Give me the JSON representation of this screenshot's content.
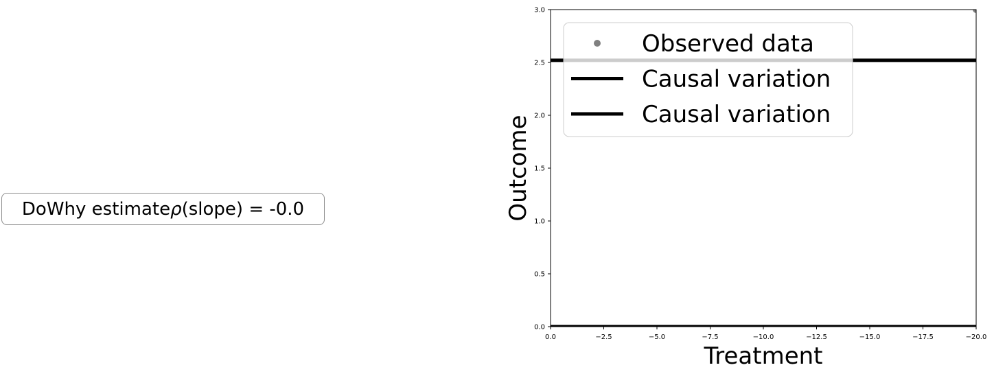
{
  "annotation": {
    "prefix": "DoWhy estimate ",
    "symbol": "ρ",
    "suffix": " (slope) = -0.0"
  },
  "chart_data": {
    "type": "line",
    "xlabel": "Treatment",
    "ylabel": "Outcome",
    "xlim": [
      0.0,
      -20.0
    ],
    "ylim": [
      0.0,
      3.0
    ],
    "xticks": [
      0.0,
      -2.5,
      -5.0,
      -7.5,
      -10.0,
      -12.5,
      -15.0,
      -17.5,
      -20.0
    ],
    "xtick_labels": [
      "0.0",
      "−2.5",
      "−5.0",
      "−7.5",
      "−10.0",
      "−12.5",
      "−15.0",
      "−17.5",
      "−20.0"
    ],
    "yticks": [
      0.0,
      0.5,
      1.0,
      1.5,
      2.0,
      2.5,
      3.0
    ],
    "ytick_labels": [
      "0.0",
      "0.5",
      "1.0",
      "1.5",
      "2.0",
      "2.5",
      "3.0"
    ],
    "grid": false,
    "legend_position": "upper-left",
    "series": [
      {
        "name": "Observed data",
        "kind": "scatter",
        "color": "#808080",
        "points": [
          {
            "x": -20.0,
            "y": 3.0
          }
        ]
      },
      {
        "name": "Causal variation",
        "kind": "line",
        "color": "#000000",
        "points": [
          {
            "x": 0.0,
            "y": 2.52
          },
          {
            "x": -20.0,
            "y": 2.52
          }
        ]
      },
      {
        "name": "Causal variation",
        "kind": "line",
        "color": "#000000",
        "points": [
          {
            "x": 0.0,
            "y": 0.0
          },
          {
            "x": -20.0,
            "y": 0.0
          }
        ]
      }
    ]
  }
}
